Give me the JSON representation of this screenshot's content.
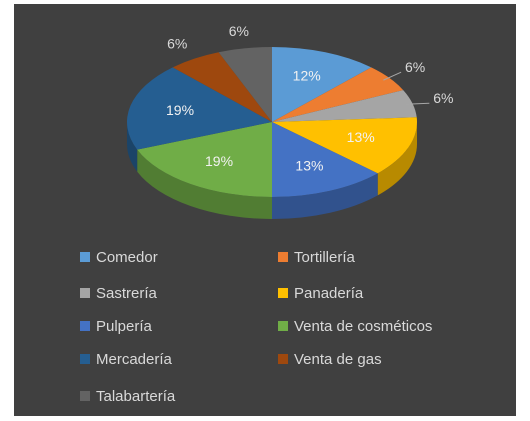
{
  "chart_data": {
    "type": "pie",
    "categories": [
      "Comedor",
      "Tortillería",
      "Sastrería",
      "Panadería",
      "Pulpería",
      "Venta de cosméticos",
      "Mercadería",
      "Venta de gas",
      "Talabartería"
    ],
    "values": [
      12,
      6,
      6,
      13,
      13,
      19,
      19,
      6,
      6
    ],
    "value_labels": [
      "12%",
      "6%",
      "6%",
      "13%",
      "13%",
      "19%",
      "19%",
      "6%",
      "6%"
    ],
    "colors": [
      "#5b9bd5",
      "#ed7d31",
      "#a5a5a5",
      "#ffc000",
      "#4472c4",
      "#70ad47",
      "#255e91",
      "#9e480e",
      "#636363"
    ]
  }
}
